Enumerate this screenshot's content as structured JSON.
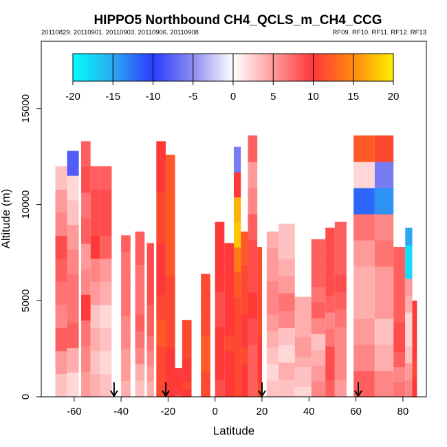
{
  "chart_data": {
    "type": "heatmap",
    "title": "HIPPO5 Northbound CH4_QCLS_m_CH4_CCG",
    "subtitle_left": "20110829. 20110901. 20110903. 20110906. 20110908",
    "subtitle_right": "RF09. RF10. RF11. RF12. RF13",
    "xlabel": "Latitude",
    "ylabel": "Altitude (m)",
    "xlim": [
      -74,
      90
    ],
    "ylim": [
      0,
      18500
    ],
    "xticks": [
      -60,
      -40,
      -20,
      0,
      20,
      40,
      60,
      80
    ],
    "yticks": [
      0,
      5000,
      10000,
      15000
    ],
    "colorbar": {
      "range": [
        -20,
        20
      ],
      "ticks": [
        -20,
        -15,
        -10,
        -5,
        0,
        5,
        10,
        15,
        20
      ],
      "stops": [
        {
          "v": -20,
          "color": "#00ffff"
        },
        {
          "v": -15,
          "color": "#2da8f0"
        },
        {
          "v": -10,
          "color": "#2a3cff"
        },
        {
          "v": -5,
          "color": "#8c8cf0"
        },
        {
          "v": 0,
          "color": "#ffffff"
        },
        {
          "v": 5,
          "color": "#ff9a9a"
        },
        {
          "v": 10,
          "color": "#ff3838"
        },
        {
          "v": 15,
          "color": "#ff8a10"
        },
        {
          "v": 20,
          "color": "#ffee00"
        }
      ]
    },
    "profiles": [
      {
        "lat": [
          -68,
          -63
        ],
        "top": 12000,
        "values": [
          3,
          5,
          8,
          6,
          7,
          8,
          9,
          6,
          5,
          3
        ]
      },
      {
        "lat": [
          -63,
          -58
        ],
        "top": 12800,
        "values": [
          2,
          4,
          8,
          7,
          7,
          6,
          5,
          3,
          2,
          -8
        ]
      },
      {
        "lat": [
          -57,
          -53
        ],
        "top": 13300,
        "values": [
          5,
          6,
          7,
          10,
          6,
          5,
          8,
          7,
          9,
          8
        ]
      },
      {
        "lat": [
          -53,
          -49
        ],
        "top": 12000,
        "values": [
          4,
          3,
          4,
          3,
          5,
          6,
          10,
          9,
          9,
          8
        ]
      },
      {
        "lat": [
          -49,
          -44
        ],
        "top": 12000,
        "values": [
          3,
          2,
          3,
          2,
          4,
          5,
          8,
          9,
          9,
          8
        ]
      },
      {
        "lat": [
          -40,
          -36
        ],
        "top": 8400,
        "values": [
          4,
          5,
          5,
          6,
          6,
          7,
          7,
          7,
          7,
          8
        ]
      },
      {
        "lat": [
          -34,
          -30
        ],
        "top": 8600,
        "values": [
          3,
          4,
          6,
          7,
          8,
          7,
          7,
          7,
          8,
          8
        ]
      },
      {
        "lat": [
          -29,
          -26
        ],
        "top": 8000,
        "values": [
          4,
          5,
          6,
          7,
          8,
          8,
          9,
          9,
          9,
          9
        ]
      },
      {
        "lat": [
          -25,
          -21
        ],
        "top": 13300,
        "values": [
          11,
          11,
          12,
          11,
          10,
          10,
          11,
          11,
          10,
          10
        ]
      },
      {
        "lat": [
          -21,
          -17
        ],
        "top": 12600,
        "values": [
          10,
          10,
          11,
          11,
          11,
          12,
          12,
          12,
          12,
          12
        ]
      },
      {
        "lat": [
          -17,
          -14
        ],
        "top": 1500,
        "values": [
          9,
          10,
          10,
          10,
          10,
          10,
          10,
          10,
          10,
          10
        ]
      },
      {
        "lat": [
          -14,
          -10
        ],
        "top": 4000,
        "values": [
          10,
          11,
          10,
          10,
          10,
          11,
          11,
          11,
          11,
          11
        ]
      },
      {
        "lat": [
          -6,
          -2
        ],
        "top": 6400,
        "values": [
          11,
          11,
          12,
          12,
          12,
          11,
          11,
          11,
          11,
          11
        ]
      },
      {
        "lat": [
          0,
          4
        ],
        "top": 9100,
        "values": [
          9,
          10,
          10,
          10,
          9,
          9,
          10,
          10,
          10,
          10
        ]
      },
      {
        "lat": [
          4,
          8
        ],
        "top": 8000,
        "values": [
          10,
          10,
          10,
          11,
          10,
          10,
          10,
          10,
          10,
          10
        ]
      },
      {
        "lat": [
          8,
          11
        ],
        "top": 13000,
        "values": [
          11,
          11,
          11,
          11,
          12,
          14,
          18,
          17,
          10,
          -6
        ]
      },
      {
        "lat": [
          11,
          14
        ],
        "top": 8600,
        "values": [
          10,
          10,
          11,
          10,
          10,
          11,
          11,
          11,
          12,
          12
        ]
      },
      {
        "lat": [
          14,
          18
        ],
        "top": 13600,
        "values": [
          8,
          8,
          9,
          10,
          9,
          9,
          8,
          6,
          5,
          8
        ]
      },
      {
        "lat": [
          18,
          20
        ],
        "top": 7800,
        "values": [
          11,
          10,
          10,
          10,
          11,
          11,
          11,
          11,
          11,
          11
        ]
      },
      {
        "lat": [
          22,
          27
        ],
        "top": 8600,
        "values": [
          3,
          2,
          3,
          4,
          5,
          6,
          6,
          5,
          5,
          4
        ]
      },
      {
        "lat": [
          27,
          34
        ],
        "top": 9000,
        "values": [
          3,
          4,
          2,
          3,
          6,
          7,
          5,
          4,
          3,
          3
        ]
      },
      {
        "lat": [
          34,
          41
        ],
        "top": 5200,
        "values": [
          2,
          3,
          3,
          4,
          5,
          5,
          4,
          4,
          4,
          4
        ]
      },
      {
        "lat": [
          41,
          47
        ],
        "top": 8200,
        "values": [
          6,
          5,
          4,
          3,
          6,
          8,
          7,
          8,
          8,
          8
        ]
      },
      {
        "lat": [
          47,
          51
        ],
        "top": 8800,
        "values": [
          8,
          9,
          9,
          7,
          6,
          8,
          9,
          9,
          9,
          9
        ]
      },
      {
        "lat": [
          51,
          56
        ],
        "top": 9100,
        "values": [
          5,
          6,
          6,
          6,
          7,
          8,
          9,
          8,
          8,
          8
        ]
      },
      {
        "lat": [
          59,
          68
        ],
        "top": 13600,
        "values": [
          8,
          6,
          5,
          4,
          4,
          5,
          7,
          -12,
          2,
          12
        ]
      },
      {
        "lat": [
          68,
          76
        ],
        "top": 13600,
        "values": [
          6,
          4,
          3,
          5,
          5,
          7,
          6,
          -14,
          -6,
          11
        ]
      },
      {
        "lat": [
          76,
          81
        ],
        "top": 7800,
        "values": [
          7,
          6,
          8,
          9,
          9,
          8,
          8,
          8,
          8,
          8
        ]
      },
      {
        "lat": [
          81,
          84
        ],
        "top": 8800,
        "values": [
          6,
          5,
          3,
          2,
          2,
          4,
          5,
          -18,
          -18,
          -15
        ]
      },
      {
        "lat": [
          84,
          86
        ],
        "top": 5000,
        "values": [
          10,
          10,
          11,
          11,
          10,
          10,
          10,
          10,
          10,
          10
        ]
      }
    ],
    "arrow_latitudes": [
      -43,
      -21,
      20,
      61
    ]
  }
}
